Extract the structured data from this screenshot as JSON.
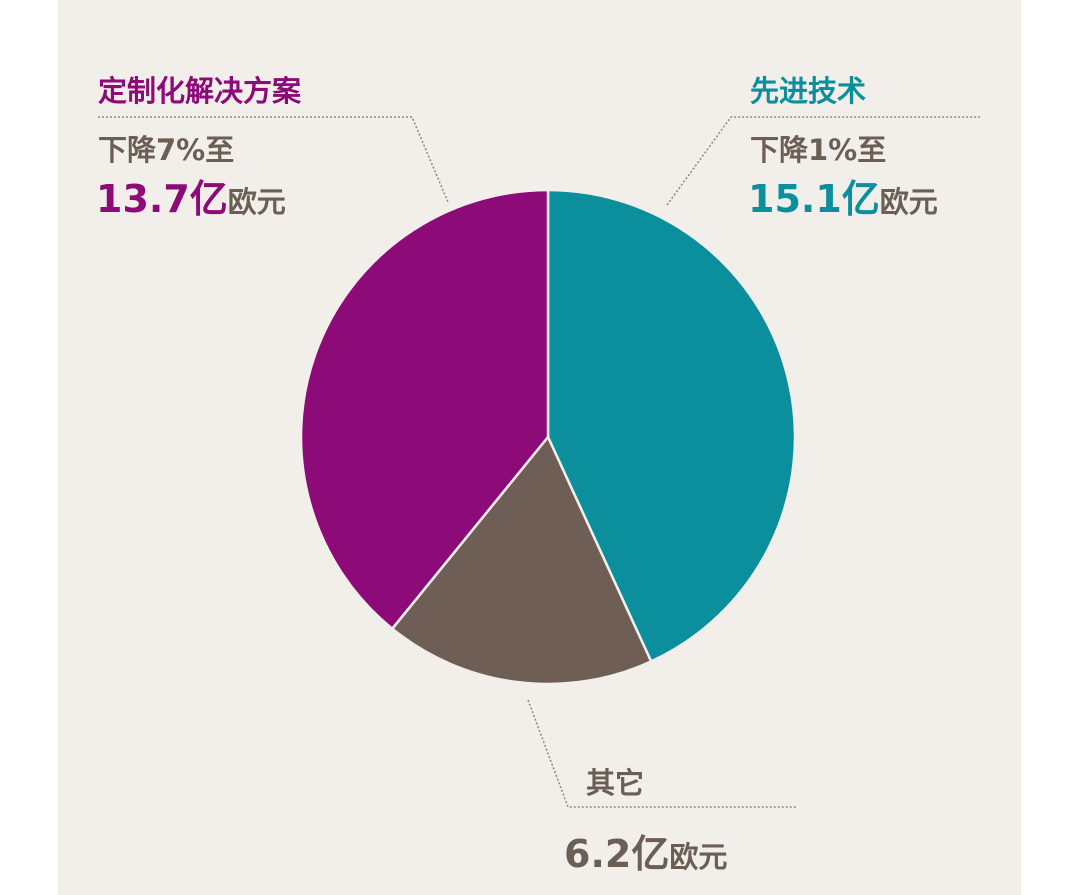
{
  "chart_data": {
    "type": "pie",
    "unit": "亿欧元",
    "slices": [
      {
        "name": "先进技术",
        "value": 15.1,
        "change": "下降1%至",
        "color": "#0b8f9c"
      },
      {
        "name": "其它",
        "value": 6.2,
        "change": "",
        "color": "#6e5e55"
      },
      {
        "name": "定制化解决方案",
        "value": 13.7,
        "change": "下降7%至",
        "color": "#8d0a79"
      }
    ]
  },
  "labels": {
    "tech": {
      "title": "先进技术",
      "change": "下降1%至",
      "value": "15.1亿",
      "unit": "欧元"
    },
    "custom": {
      "title": "定制化解决方案",
      "change": "下降7%至",
      "value": "13.7亿",
      "unit": "欧元"
    },
    "other": {
      "title": "其它",
      "value": "6.2亿",
      "unit": "欧元"
    }
  },
  "background": "#f2efeb"
}
